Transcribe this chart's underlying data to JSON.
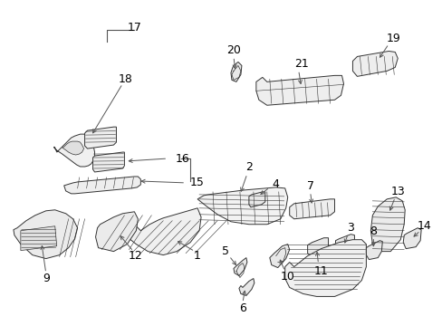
{
  "background_color": "#ffffff",
  "fig_width": 4.89,
  "fig_height": 3.6,
  "dpi": 100,
  "line_color": "#333333",
  "label_color": "#000000"
}
